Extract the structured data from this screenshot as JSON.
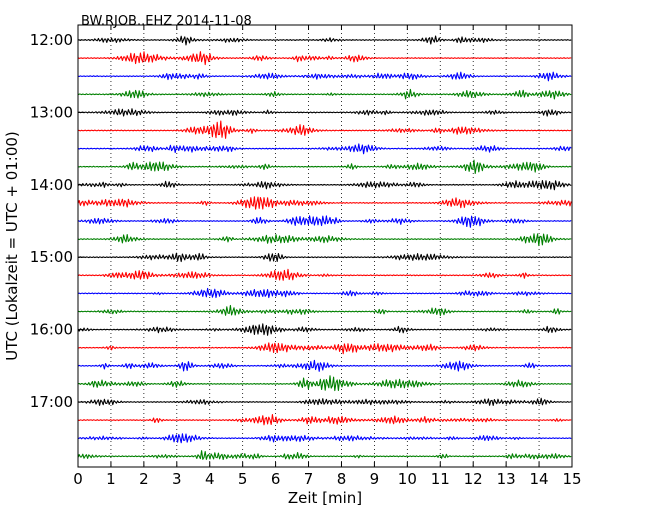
{
  "chart_data": {
    "type": "line",
    "title": "BW.RJOB..EHZ 2014-11-08",
    "xlabel": "Zeit  [min]",
    "ylabel": "UTC (Lokalzeit = UTC + 01:00)",
    "xlim": [
      0,
      15
    ],
    "x_ticks": [
      "0",
      "1",
      "2",
      "3",
      "4",
      "5",
      "6",
      "7",
      "8",
      "9",
      "10",
      "11",
      "12",
      "13",
      "14",
      "15"
    ],
    "y_ticks": [
      "12:00",
      "13:00",
      "14:00",
      "15:00",
      "16:00",
      "17:00"
    ],
    "grid": {
      "x": "dotted vertical lines at each minute",
      "y": "none"
    },
    "row_interval_minutes": 15,
    "start_time": "12:00",
    "row_count": 24,
    "series_colors": [
      "#000000",
      "#ff0000",
      "#0000ff",
      "#008000"
    ]
  }
}
